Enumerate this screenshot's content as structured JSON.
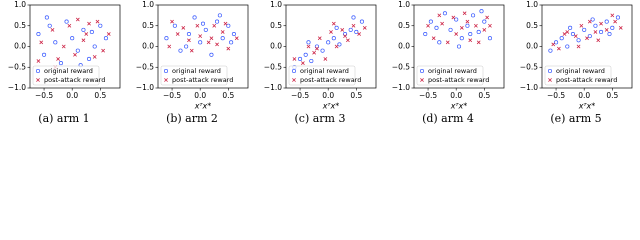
{
  "chart_data": [
    {
      "type": "scatter",
      "caption": "(a) arm 1",
      "xlim": [
        -0.75,
        0.85
      ],
      "ylim": [
        -1,
        1
      ],
      "xticks": [
        {
          "value": -0.5,
          "label": "−0.5"
        },
        {
          "value": 0,
          "label": "0.0"
        },
        {
          "value": 0.5,
          "label": "0.5"
        }
      ],
      "yticks": [
        {
          "value": 1,
          "label": "1.0"
        },
        {
          "value": 0.5,
          "label": "0.5"
        },
        {
          "value": 0,
          "label": "0.0"
        },
        {
          "value": -0.5,
          "label": "−0.5"
        },
        {
          "value": -1,
          "label": "−1.0"
        }
      ],
      "series": [
        {
          "name": "original reward",
          "color": "#3355ff",
          "x": [
            -0.6,
            -0.5,
            -0.4,
            -0.3,
            -0.2,
            -0.1,
            0.0,
            0.1,
            0.2,
            0.3,
            0.4,
            0.5,
            0.6,
            -0.45,
            0.15,
            0.35
          ],
          "values": [
            0.3,
            -0.2,
            0.5,
            0.1,
            -0.4,
            0.6,
            0.2,
            -0.1,
            0.4,
            -0.3,
            0.0,
            0.5,
            0.2,
            0.7,
            -0.45,
            0.35
          ]
        },
        {
          "name": "post-attack reward",
          "color": "#cc2244",
          "x": [
            -0.55,
            -0.35,
            -0.25,
            -0.05,
            0.05,
            0.25,
            0.45,
            0.55,
            -0.15,
            0.3,
            0.65,
            -0.6,
            0.1,
            -0.3,
            0.4,
            0.2
          ],
          "values": [
            0.1,
            0.4,
            -0.3,
            0.5,
            -0.2,
            0.3,
            0.6,
            -0.1,
            0.0,
            0.55,
            0.3,
            -0.35,
            0.65,
            -0.5,
            -0.25,
            0.15
          ]
        }
      ]
    },
    {
      "type": "scatter",
      "caption": "(b) arm 2",
      "xlabel": "xᵀx*",
      "xlim": [
        -0.75,
        0.85
      ],
      "ylim": [
        -1,
        1
      ],
      "xticks": [
        {
          "value": -0.5,
          "label": "−0.5"
        },
        {
          "value": 0,
          "label": "0.0"
        },
        {
          "value": 0.5,
          "label": "0.5"
        }
      ],
      "yticks": [
        {
          "value": 1,
          "label": "1.0"
        },
        {
          "value": 0.5,
          "label": "0.5"
        },
        {
          "value": 0,
          "label": "0.0"
        },
        {
          "value": -0.5,
          "label": "−0.5"
        },
        {
          "value": -1,
          "label": "−1.0"
        }
      ],
      "series": [
        {
          "name": "original reward",
          "color": "#3355ff",
          "x": [
            -0.6,
            -0.45,
            -0.35,
            -0.2,
            -0.1,
            0.0,
            0.1,
            0.2,
            0.3,
            0.4,
            0.5,
            0.6,
            -0.25,
            0.05,
            0.35,
            0.55
          ],
          "values": [
            0.2,
            0.5,
            -0.1,
            0.3,
            0.7,
            0.1,
            0.4,
            -0.2,
            0.6,
            0.2,
            0.5,
            0.3,
            0.0,
            0.55,
            0.75,
            0.1
          ]
        },
        {
          "name": "post-attack reward",
          "color": "#cc2244",
          "x": [
            -0.55,
            -0.4,
            -0.3,
            -0.15,
            0.0,
            0.15,
            0.25,
            0.4,
            0.5,
            0.65,
            -0.5,
            -0.05,
            0.2,
            0.45,
            -0.2,
            0.3
          ],
          "values": [
            0.0,
            0.3,
            0.45,
            -0.1,
            0.25,
            0.1,
            0.5,
            0.35,
            -0.05,
            0.2,
            0.6,
            0.5,
            0.2,
            0.55,
            0.15,
            0.05
          ]
        }
      ]
    },
    {
      "type": "scatter",
      "caption": "(c) arm 3",
      "xlabel": "xᵀx*",
      "xlim": [
        -0.75,
        0.85
      ],
      "ylim": [
        -1,
        1
      ],
      "xticks": [
        {
          "value": -0.5,
          "label": "−0.5"
        },
        {
          "value": 0,
          "label": "0.0"
        },
        {
          "value": 0.5,
          "label": "0.5"
        }
      ],
      "yticks": [
        {
          "value": 1,
          "label": "1.0"
        },
        {
          "value": 0.5,
          "label": "0.5"
        },
        {
          "value": 0,
          "label": "0.0"
        },
        {
          "value": -0.5,
          "label": "−0.5"
        },
        {
          "value": -1,
          "label": "−1.0"
        }
      ],
      "series": [
        {
          "name": "original reward",
          "color": "#3355ff",
          "x": [
            -0.6,
            -0.5,
            -0.4,
            -0.3,
            -0.2,
            -0.1,
            0.0,
            0.1,
            0.2,
            0.3,
            0.4,
            0.5,
            0.6,
            -0.35,
            0.15,
            0.45
          ],
          "values": [
            -0.5,
            -0.3,
            -0.2,
            -0.35,
            0.0,
            -0.1,
            0.1,
            0.2,
            0.05,
            0.3,
            0.4,
            0.35,
            0.6,
            0.1,
            0.45,
            0.7
          ]
        },
        {
          "name": "post-attack reward",
          "color": "#cc2244",
          "x": [
            -0.6,
            -0.45,
            -0.35,
            -0.25,
            -0.15,
            -0.05,
            0.05,
            0.15,
            0.25,
            0.35,
            0.45,
            0.55,
            0.65,
            -0.2,
            0.1,
            0.3
          ],
          "values": [
            -0.3,
            -0.4,
            0.0,
            -0.15,
            0.2,
            -0.3,
            0.35,
            0.0,
            0.4,
            0.15,
            0.5,
            0.3,
            0.45,
            -0.05,
            0.55,
            0.25
          ]
        }
      ]
    },
    {
      "type": "scatter",
      "caption": "(d) arm 4",
      "xlabel": "xᵀx*",
      "xlim": [
        -0.75,
        0.85
      ],
      "ylim": [
        -1,
        1
      ],
      "xticks": [
        {
          "value": -0.5,
          "label": "−0.5"
        },
        {
          "value": 0,
          "label": "0.0"
        },
        {
          "value": 0.5,
          "label": "0.5"
        }
      ],
      "yticks": [
        {
          "value": 1,
          "label": "1.0"
        },
        {
          "value": 0.5,
          "label": "0.5"
        },
        {
          "value": 0,
          "label": "0.0"
        },
        {
          "value": -0.5,
          "label": "−0.5"
        },
        {
          "value": -1,
          "label": "−1.0"
        }
      ],
      "series": [
        {
          "name": "original reward",
          "color": "#3355ff",
          "x": [
            -0.55,
            -0.45,
            -0.3,
            -0.2,
            -0.1,
            0.0,
            0.1,
            0.2,
            0.3,
            0.4,
            0.5,
            0.6,
            -0.35,
            0.05,
            0.25,
            0.45
          ],
          "values": [
            0.3,
            0.6,
            0.1,
            0.8,
            0.4,
            0.65,
            0.2,
            0.5,
            0.75,
            0.35,
            0.6,
            0.2,
            0.45,
            0.0,
            0.3,
            0.85
          ]
        },
        {
          "name": "post-attack reward",
          "color": "#cc2244",
          "x": [
            -0.5,
            -0.4,
            -0.25,
            -0.15,
            -0.05,
            0.1,
            0.15,
            0.25,
            0.35,
            0.5,
            0.55,
            -0.3,
            0.0,
            0.2,
            0.4,
            0.6
          ],
          "values": [
            0.5,
            0.2,
            0.55,
            0.1,
            0.7,
            0.45,
            0.8,
            0.15,
            0.5,
            0.4,
            0.7,
            0.75,
            0.3,
            0.6,
            0.1,
            0.5
          ]
        }
      ]
    },
    {
      "type": "scatter",
      "caption": "(e) arm 5",
      "xlabel": "xᵀx*",
      "xlim": [
        -0.75,
        0.85
      ],
      "ylim": [
        -1,
        1
      ],
      "xticks": [
        {
          "value": -0.5,
          "label": "−0.5"
        },
        {
          "value": 0,
          "label": "0.0"
        },
        {
          "value": 0.5,
          "label": "0.5"
        }
      ],
      "yticks": [
        {
          "value": 1,
          "label": "1.0"
        },
        {
          "value": 0.5,
          "label": "0.5"
        },
        {
          "value": 0,
          "label": "0.0"
        },
        {
          "value": -0.5,
          "label": "−0.5"
        },
        {
          "value": -1,
          "label": "−1.0"
        }
      ],
      "series": [
        {
          "name": "original reward",
          "color": "#3355ff",
          "x": [
            -0.6,
            -0.5,
            -0.4,
            -0.3,
            -0.2,
            -0.1,
            0.0,
            0.1,
            0.2,
            0.3,
            0.4,
            0.5,
            0.6,
            -0.25,
            0.15,
            0.45
          ],
          "values": [
            -0.1,
            0.1,
            0.2,
            0.0,
            0.3,
            0.15,
            0.4,
            0.25,
            0.5,
            0.35,
            0.6,
            0.45,
            0.7,
            0.45,
            0.65,
            0.3
          ]
        },
        {
          "name": "post-attack reward",
          "color": "#cc2244",
          "x": [
            -0.55,
            -0.45,
            -0.35,
            -0.15,
            -0.05,
            0.05,
            0.2,
            0.3,
            0.4,
            0.55,
            0.65,
            -0.3,
            0.1,
            0.25,
            0.5,
            -0.1
          ],
          "values": [
            0.05,
            -0.05,
            0.3,
            0.25,
            0.5,
            0.2,
            0.35,
            0.55,
            0.4,
            0.6,
            0.45,
            0.35,
            0.6,
            0.15,
            0.75,
            0.0
          ]
        }
      ]
    }
  ]
}
